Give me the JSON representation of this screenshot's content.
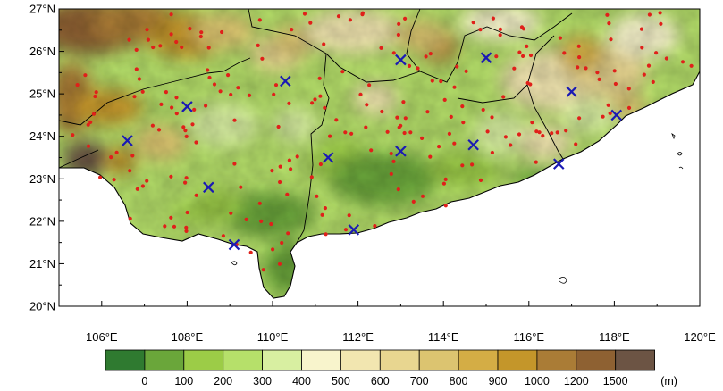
{
  "map": {
    "extent": {
      "lon": [
        105,
        120
      ],
      "lat": [
        20,
        27
      ]
    },
    "lat_ticks": [
      {
        "value": 27,
        "label": "27°N"
      },
      {
        "value": 26,
        "label": "26°N"
      },
      {
        "value": 25,
        "label": "25°N"
      },
      {
        "value": 24,
        "label": "24°N"
      },
      {
        "value": 23,
        "label": "23°N"
      },
      {
        "value": 22,
        "label": "22°N"
      },
      {
        "value": 21,
        "label": "21°N"
      },
      {
        "value": 20,
        "label": "20°N"
      }
    ],
    "lon_ticks": [
      {
        "value": 106,
        "label": "106°E"
      },
      {
        "value": 108,
        "label": "108°E"
      },
      {
        "value": 110,
        "label": "110°E"
      },
      {
        "value": 112,
        "label": "112°E"
      },
      {
        "value": 114,
        "label": "114°E"
      },
      {
        "value": 116,
        "label": "116°E"
      },
      {
        "value": 118,
        "label": "118°E"
      },
      {
        "value": 120,
        "label": "120°E"
      }
    ],
    "sounding_stations_lonlat": [
      [
        106.6,
        23.9
      ],
      [
        108.0,
        24.7
      ],
      [
        108.5,
        22.8
      ],
      [
        109.1,
        21.45
      ],
      [
        110.3,
        25.3
      ],
      [
        111.3,
        23.5
      ],
      [
        111.9,
        21.8
      ],
      [
        113.0,
        25.8
      ],
      [
        113.0,
        23.65
      ],
      [
        114.7,
        23.8
      ],
      [
        115.0,
        25.85
      ],
      [
        117.0,
        25.05
      ],
      [
        116.7,
        23.35
      ],
      [
        118.05,
        24.5
      ]
    ],
    "station_seed": 7,
    "station_count": 240
  },
  "colorbar": {
    "unit": "(m)",
    "colors": [
      "#2f7a30",
      "#6aa63a",
      "#9ccc47",
      "#b6e06a",
      "#d8efa1",
      "#f8f4cc",
      "#f2e6b0",
      "#e8d690",
      "#dcc470",
      "#d4ad45",
      "#c4962a",
      "#aa7c36",
      "#8e6132",
      "#6c5444"
    ],
    "labels": [
      "0",
      "100",
      "200",
      "300",
      "400",
      "500",
      "600",
      "700",
      "800",
      "900",
      "1000",
      "1200",
      "1500"
    ]
  },
  "style": {
    "station_dot_color": "#e0201a",
    "sounding_marker_color": "#1a1ab4",
    "sea_color": "#ffffff",
    "border_color": "#000000"
  }
}
